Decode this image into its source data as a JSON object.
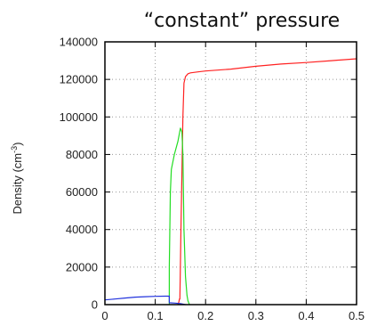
{
  "chart_data": {
    "type": "line",
    "title": "“constant” pressure",
    "ylabel": "Density (cm",
    "ylabel_sup": "-3",
    "ylabel_tail": ")",
    "xlabel": "",
    "xlim": [
      0,
      0.5
    ],
    "ylim": [
      0,
      140000
    ],
    "x_ticks": [
      "0",
      "0.1",
      "0.2",
      "0.3",
      "0.4",
      "0.5"
    ],
    "y_ticks": [
      "0",
      "20000",
      "40000",
      "60000",
      "80000",
      "100000",
      "120000",
      "140000"
    ],
    "grid": true,
    "series": [
      {
        "color": "#ff2222",
        "points": [
          [
            0.145,
            0
          ],
          [
            0.147,
            1500
          ],
          [
            0.148,
            3000
          ],
          [
            0.149,
            3000
          ],
          [
            0.151,
            40000
          ],
          [
            0.153,
            70000
          ],
          [
            0.155,
            100000
          ],
          [
            0.157,
            118000
          ],
          [
            0.16,
            121500
          ],
          [
            0.165,
            123000
          ],
          [
            0.17,
            123500
          ],
          [
            0.185,
            124000
          ],
          [
            0.2,
            124500
          ],
          [
            0.25,
            125500
          ],
          [
            0.3,
            127000
          ],
          [
            0.35,
            128200
          ],
          [
            0.4,
            129000
          ],
          [
            0.45,
            130000
          ],
          [
            0.5,
            131000
          ]
        ]
      },
      {
        "color": "#22dd22",
        "points": [
          [
            0.128,
            0
          ],
          [
            0.128,
            20000
          ],
          [
            0.129,
            40000
          ],
          [
            0.13,
            60000
          ],
          [
            0.132,
            72000
          ],
          [
            0.138,
            80000
          ],
          [
            0.145,
            87000
          ],
          [
            0.15,
            94000
          ],
          [
            0.153,
            92000
          ],
          [
            0.155,
            80000
          ],
          [
            0.157,
            40000
          ],
          [
            0.16,
            15000
          ],
          [
            0.163,
            5000
          ],
          [
            0.165,
            2000
          ],
          [
            0.168,
            0
          ]
        ]
      },
      {
        "color": "#2233dd",
        "points": [
          [
            0,
            2500
          ],
          [
            0.02,
            3000
          ],
          [
            0.04,
            3500
          ],
          [
            0.06,
            4000
          ],
          [
            0.08,
            4200
          ],
          [
            0.1,
            4400
          ],
          [
            0.12,
            4500
          ],
          [
            0.128,
            4500
          ],
          [
            0.128,
            1000
          ],
          [
            0.14,
            800
          ],
          [
            0.15,
            500
          ],
          [
            0.16,
            0
          ]
        ]
      }
    ]
  }
}
